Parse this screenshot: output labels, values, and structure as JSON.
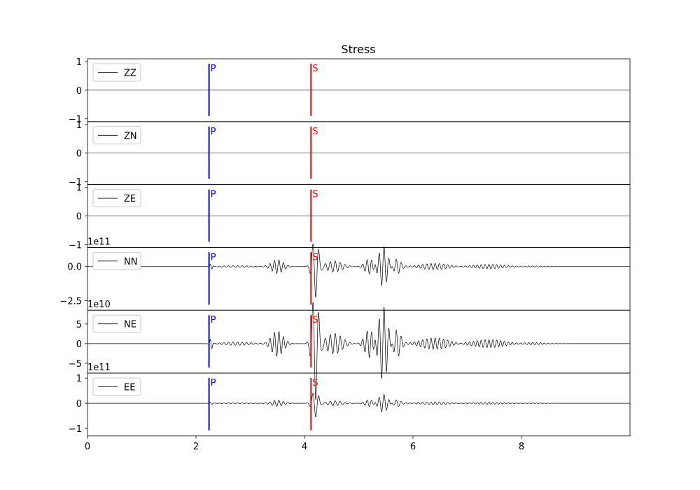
{
  "chart_data": {
    "type": "line",
    "title": "Stress",
    "xlim": [
      0,
      10
    ],
    "x_ticks": [
      "0",
      "2",
      "4",
      "6",
      "8"
    ],
    "x_tick_values": [
      0,
      2,
      4,
      6,
      8
    ],
    "grid": false,
    "legend_placement": "upper-left",
    "markers": {
      "P": {
        "label": "P",
        "time": 2.24,
        "color": "#0000ff"
      },
      "S": {
        "label": "S",
        "time": 4.12,
        "color": "#ff0000"
      }
    },
    "trace_color": "#000000",
    "panels": [
      {
        "name": "ZZ",
        "legend": "ZZ",
        "scale_label": "",
        "ylim": [
          -1.1,
          1.1
        ],
        "y_ticks": [
          "1",
          "0",
          "−1"
        ],
        "y_tick_values": [
          1,
          0,
          -1
        ],
        "amplitude": 0
      },
      {
        "name": "ZN",
        "legend": "ZN",
        "scale_label": "",
        "ylim": [
          -1.1,
          1.1
        ],
        "y_ticks": [
          "1",
          "0",
          "−1"
        ],
        "y_tick_values": [
          1,
          0,
          -1
        ],
        "amplitude": 0
      },
      {
        "name": "ZE",
        "legend": "ZE",
        "scale_label": "",
        "ylim": [
          -1.1,
          1.1
        ],
        "y_ticks": [
          "1",
          "0",
          "−1"
        ],
        "y_tick_values": [
          1,
          0,
          -1
        ],
        "amplitude": 0
      },
      {
        "name": "NN",
        "legend": "NN",
        "scale_label": "1e11",
        "ylim": [
          -3.2,
          1.4
        ],
        "y_ticks": [
          "0.0",
          "−2.5"
        ],
        "y_tick_values": [
          0,
          -2.5
        ],
        "amplitude": 1
      },
      {
        "name": "NE",
        "legend": "NE",
        "scale_label": "1e10",
        "ylim": [
          -7.5,
          8.5
        ],
        "y_ticks": [
          "5",
          "0",
          "−5"
        ],
        "y_tick_values": [
          5,
          0,
          -5
        ],
        "amplitude": 2.4
      },
      {
        "name": "EE",
        "legend": "EE",
        "scale_label": "1e11",
        "ylim": [
          -1.3,
          1.2
        ],
        "y_ticks": [
          "1",
          "0",
          "−1"
        ],
        "y_tick_values": [
          1,
          0,
          -1
        ],
        "amplitude": 0.6
      }
    ]
  }
}
